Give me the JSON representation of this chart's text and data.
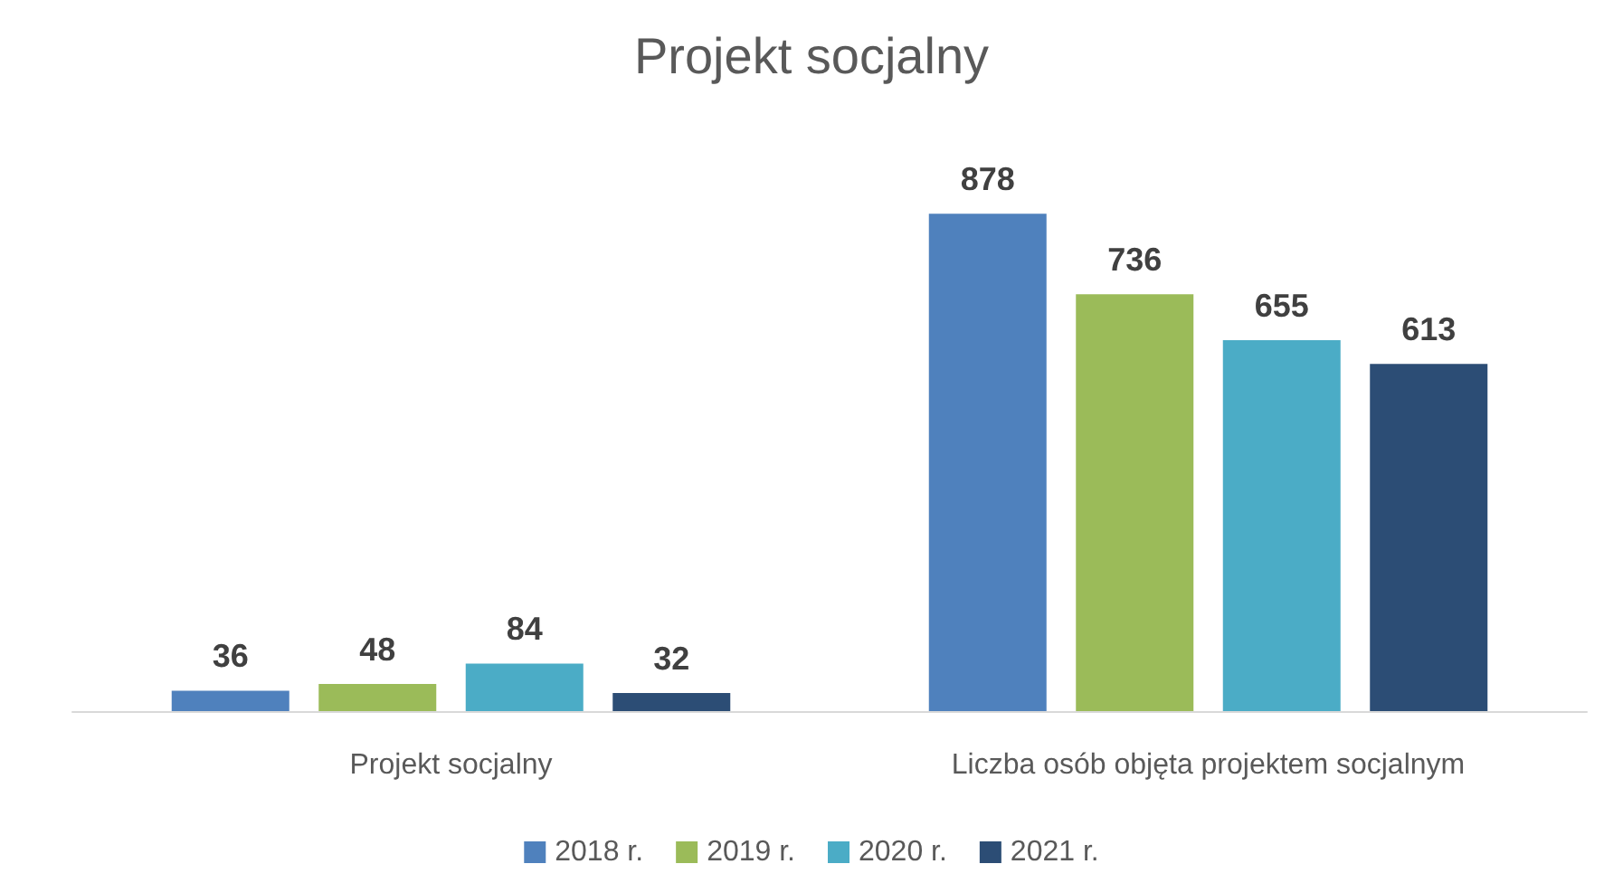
{
  "chart_data": {
    "type": "bar",
    "title": "Projekt socjalny",
    "categories": [
      "Projekt socjalny",
      "Liczba osób objęta projektem socjalnym"
    ],
    "series": [
      {
        "name": "2018 r.",
        "color": "#4f81bd",
        "values": [
          36,
          878
        ]
      },
      {
        "name": "2019 r.",
        "color": "#9bbb59",
        "values": [
          48,
          736
        ]
      },
      {
        "name": "2020 r.",
        "color": "#4bacc6",
        "values": [
          84,
          655
        ]
      },
      {
        "name": "2021 r.",
        "color": "#2c4d75",
        "values": [
          32,
          613
        ]
      }
    ],
    "data_labels": true,
    "legend": "bottom"
  }
}
